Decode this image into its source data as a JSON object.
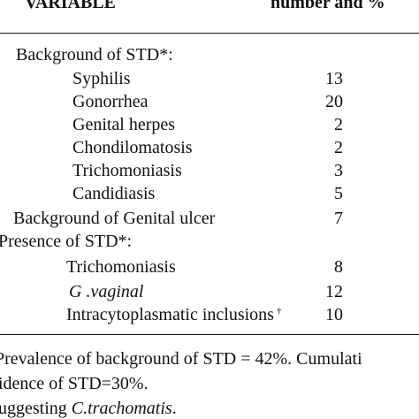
{
  "header": {
    "variable": "VARIABLE",
    "number": "number and %"
  },
  "sections": {
    "background_std": {
      "label": "Background of STD*:",
      "items": [
        {
          "name": "Syphilis",
          "value": "13"
        },
        {
          "name": "Gonorrhea",
          "value": "20"
        },
        {
          "name": "Genital herpes",
          "value": "2"
        },
        {
          "name": "Chondilomatosis",
          "value": "2"
        },
        {
          "name": "Trichomoniasis",
          "value": "3"
        },
        {
          "name": "Candidiasis",
          "value": "5"
        }
      ]
    },
    "background_ulcer": {
      "label": "Background of Genital ulcer",
      "value": "7"
    },
    "presence_std": {
      "label": "Presence of STD*:",
      "items": [
        {
          "name": "Trichomoniasis",
          "value": "8"
        },
        {
          "name": "G .vaginal",
          "value": "12"
        },
        {
          "name": "Intracytoplasmatic inclusions",
          "value": "10",
          "mark": "†"
        }
      ]
    }
  },
  "footnotes": {
    "line1": "Prevalence of  background of STD = 42%. Cumulati",
    "line2": "idence of STD=30%.",
    "line3_prefix": "uggesting ",
    "line3_italic": "C.trachomatis",
    "line3_suffix": "."
  }
}
